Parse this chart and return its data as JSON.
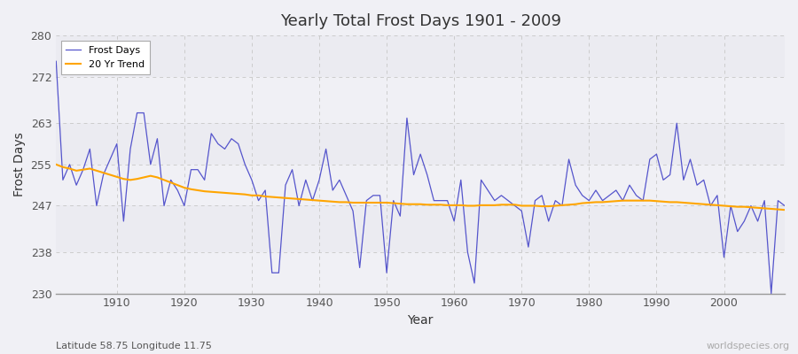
{
  "title": "Yearly Total Frost Days 1901 - 2009",
  "xlabel": "Year",
  "ylabel": "Frost Days",
  "subtitle": "Latitude 58.75 Longitude 11.75",
  "watermark": "worldspecies.org",
  "ylim": [
    230,
    280
  ],
  "yticks": [
    230,
    238,
    247,
    255,
    263,
    272,
    280
  ],
  "line_color": "#5555cc",
  "trend_color": "#FFA500",
  "bg_color": "#f0f0f5",
  "plot_bg": "#f0f0f5",
  "years": [
    1901,
    1902,
    1903,
    1904,
    1905,
    1906,
    1907,
    1908,
    1909,
    1910,
    1911,
    1912,
    1913,
    1914,
    1915,
    1916,
    1917,
    1918,
    1919,
    1920,
    1921,
    1922,
    1923,
    1924,
    1925,
    1926,
    1927,
    1928,
    1929,
    1930,
    1931,
    1932,
    1933,
    1934,
    1935,
    1936,
    1937,
    1938,
    1939,
    1940,
    1941,
    1942,
    1943,
    1944,
    1945,
    1946,
    1947,
    1948,
    1949,
    1950,
    1951,
    1952,
    1953,
    1954,
    1955,
    1956,
    1957,
    1958,
    1959,
    1960,
    1961,
    1962,
    1963,
    1964,
    1965,
    1966,
    1967,
    1968,
    1969,
    1970,
    1971,
    1972,
    1973,
    1974,
    1975,
    1976,
    1977,
    1978,
    1979,
    1980,
    1981,
    1982,
    1983,
    1984,
    1985,
    1986,
    1987,
    1988,
    1989,
    1990,
    1991,
    1992,
    1993,
    1994,
    1995,
    1996,
    1997,
    1998,
    1999,
    2000,
    2001,
    2002,
    2003,
    2004,
    2005,
    2006,
    2007,
    2008,
    2009
  ],
  "frost_days": [
    275,
    252,
    255,
    251,
    254,
    258,
    247,
    253,
    256,
    259,
    244,
    258,
    265,
    265,
    255,
    260,
    247,
    252,
    250,
    247,
    254,
    254,
    252,
    261,
    259,
    258,
    260,
    259,
    255,
    252,
    248,
    250,
    234,
    234,
    251,
    254,
    247,
    252,
    248,
    252,
    258,
    250,
    252,
    249,
    246,
    235,
    248,
    249,
    249,
    234,
    248,
    245,
    264,
    253,
    257,
    253,
    248,
    248,
    248,
    244,
    252,
    238,
    232,
    252,
    250,
    248,
    249,
    248,
    247,
    246,
    239,
    248,
    249,
    244,
    248,
    247,
    256,
    251,
    249,
    248,
    250,
    248,
    249,
    250,
    248,
    251,
    249,
    248,
    256,
    257,
    252,
    253,
    263,
    252,
    256,
    251,
    252,
    247,
    249,
    237,
    247,
    242,
    244,
    247,
    244,
    248,
    230,
    248,
    247
  ],
  "trend_values": [
    255.0,
    254.5,
    254.2,
    253.8,
    254.0,
    254.2,
    253.8,
    253.4,
    253.0,
    252.6,
    252.2,
    252.0,
    252.2,
    252.5,
    252.8,
    252.5,
    252.0,
    251.5,
    251.0,
    250.5,
    250.2,
    250.0,
    249.8,
    249.7,
    249.6,
    249.5,
    249.4,
    249.3,
    249.2,
    249.0,
    249.0,
    248.8,
    248.7,
    248.6,
    248.5,
    248.4,
    248.3,
    248.2,
    248.1,
    248.0,
    247.9,
    247.8,
    247.7,
    247.7,
    247.6,
    247.6,
    247.6,
    247.6,
    247.6,
    247.6,
    247.5,
    247.4,
    247.3,
    247.3,
    247.3,
    247.2,
    247.2,
    247.2,
    247.1,
    247.1,
    247.1,
    247.0,
    247.0,
    247.1,
    247.1,
    247.1,
    247.2,
    247.2,
    247.2,
    247.0,
    247.0,
    247.0,
    246.9,
    246.9,
    247.0,
    247.1,
    247.2,
    247.3,
    247.5,
    247.6,
    247.7,
    247.7,
    247.8,
    247.9,
    248.0,
    248.0,
    248.0,
    248.0,
    248.0,
    247.9,
    247.8,
    247.7,
    247.7,
    247.6,
    247.5,
    247.4,
    247.3,
    247.2,
    247.1,
    247.0,
    246.9,
    246.8,
    246.8,
    246.7,
    246.6,
    246.5,
    246.4,
    246.3,
    246.2
  ]
}
